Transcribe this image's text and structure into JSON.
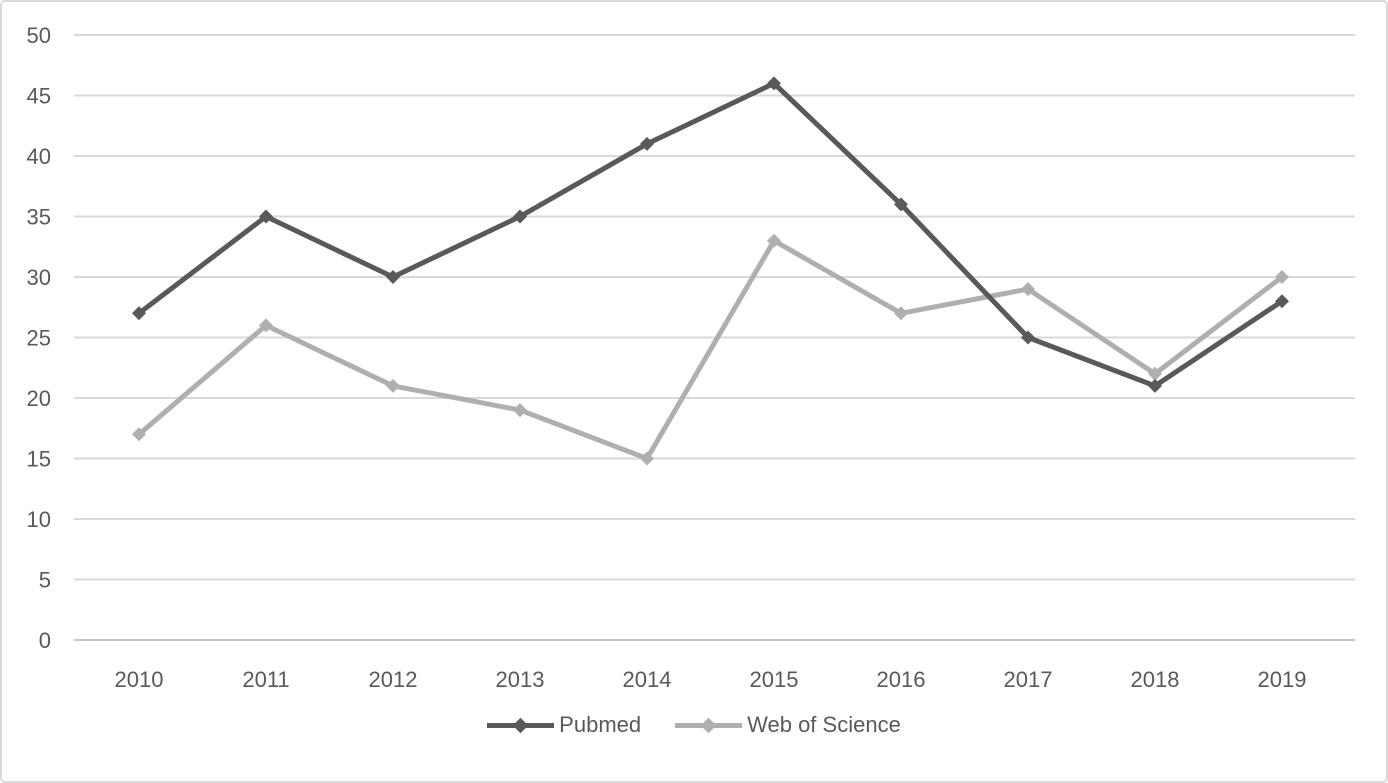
{
  "chart_data": {
    "type": "line",
    "categories": [
      "2010",
      "2011",
      "2012",
      "2013",
      "2014",
      "2015",
      "2016",
      "2017",
      "2018",
      "2019"
    ],
    "series": [
      {
        "name": "Pubmed",
        "values": [
          27,
          35,
          30,
          35,
          41,
          46,
          36,
          25,
          21,
          28
        ],
        "color": "#595959",
        "marker": "diamond"
      },
      {
        "name": "Web of Science",
        "values": [
          17,
          26,
          21,
          19,
          15,
          33,
          27,
          29,
          22,
          30
        ],
        "color": "#afafaf",
        "marker": "diamond"
      }
    ],
    "title": "",
    "xlabel": "",
    "ylabel": "",
    "ylim": [
      0,
      50
    ],
    "yticks": [
      0,
      5,
      10,
      15,
      20,
      25,
      30,
      35,
      40,
      45,
      50
    ],
    "grid": "horizontal",
    "legend_position": "bottom",
    "colors": {
      "gridline": "#d9d9d9",
      "axis_line": "#c6c6c6",
      "tick_label": "#595959",
      "background": "#ffffff",
      "border": "#d9d9d9"
    }
  }
}
